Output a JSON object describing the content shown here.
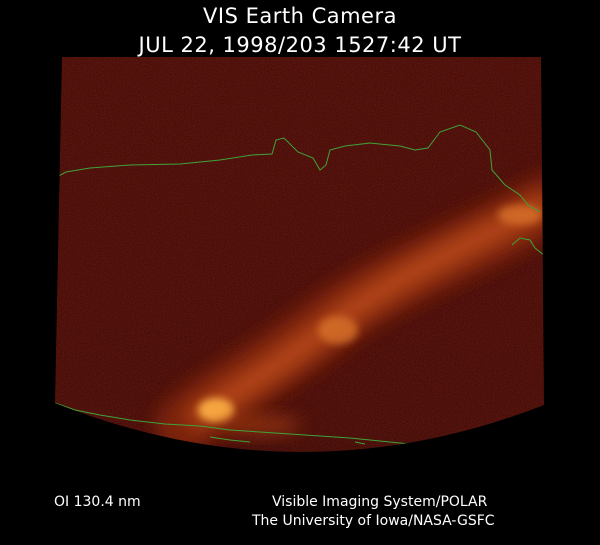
{
  "header": {
    "title": "VIS Earth Camera",
    "timestamp": "JUL 22, 1998/203 1527:42 UT"
  },
  "footer": {
    "filter": "OI  130.4 nm",
    "instrument_line1": "Visible Imaging System/POLAR",
    "instrument_line2": "The University of Iowa/NASA-GSFC"
  },
  "colors": {
    "background": "#000000",
    "field": "#3d0404",
    "aurora_bright": "#ffb347",
    "aurora_mid": "#c2501a",
    "coastline": "#3fa33a",
    "text": "#ffffff"
  }
}
